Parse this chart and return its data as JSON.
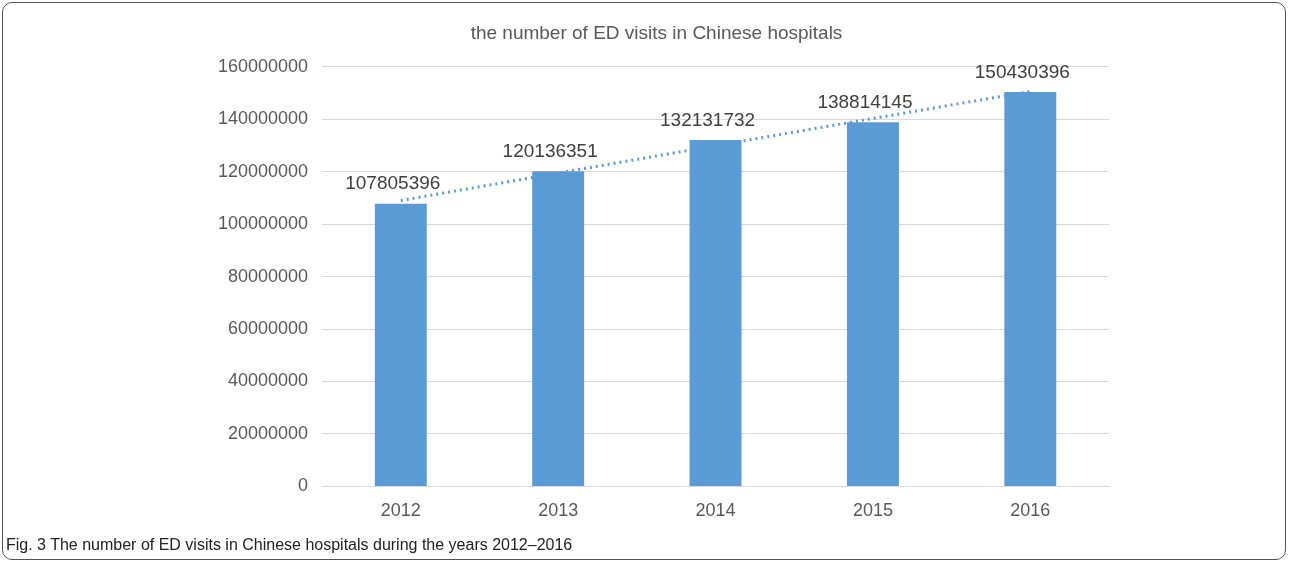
{
  "chart_data": {
    "type": "bar",
    "title": "the number of ED visits in Chinese hospitals",
    "categories": [
      "2012",
      "2013",
      "2014",
      "2015",
      "2016"
    ],
    "series": [
      {
        "color": "#5b9bd5",
        "values": [
          107805396,
          120136351,
          132131732,
          138814145,
          150430396
        ],
        "value_labels": [
          "107805396",
          "120136351",
          "132131732",
          "138814145",
          "150430396"
        ]
      },
      {
        "type": "line",
        "color": "#5b9bd5",
        "line_style": "dotted",
        "marker": "none",
        "values": [
          109000000,
          119500000,
          129900000,
          140300000,
          150600000
        ]
      }
    ],
    "ylim": [
      0,
      160000000
    ],
    "yticks": [
      0,
      20000000,
      40000000,
      60000000,
      80000000,
      100000000,
      120000000,
      140000000,
      160000000
    ],
    "grid": "y",
    "legend": false,
    "annotations": [
      "Fig. 3 The number of ED visits in Chinese hospitals during the years 2012–2016"
    ]
  }
}
